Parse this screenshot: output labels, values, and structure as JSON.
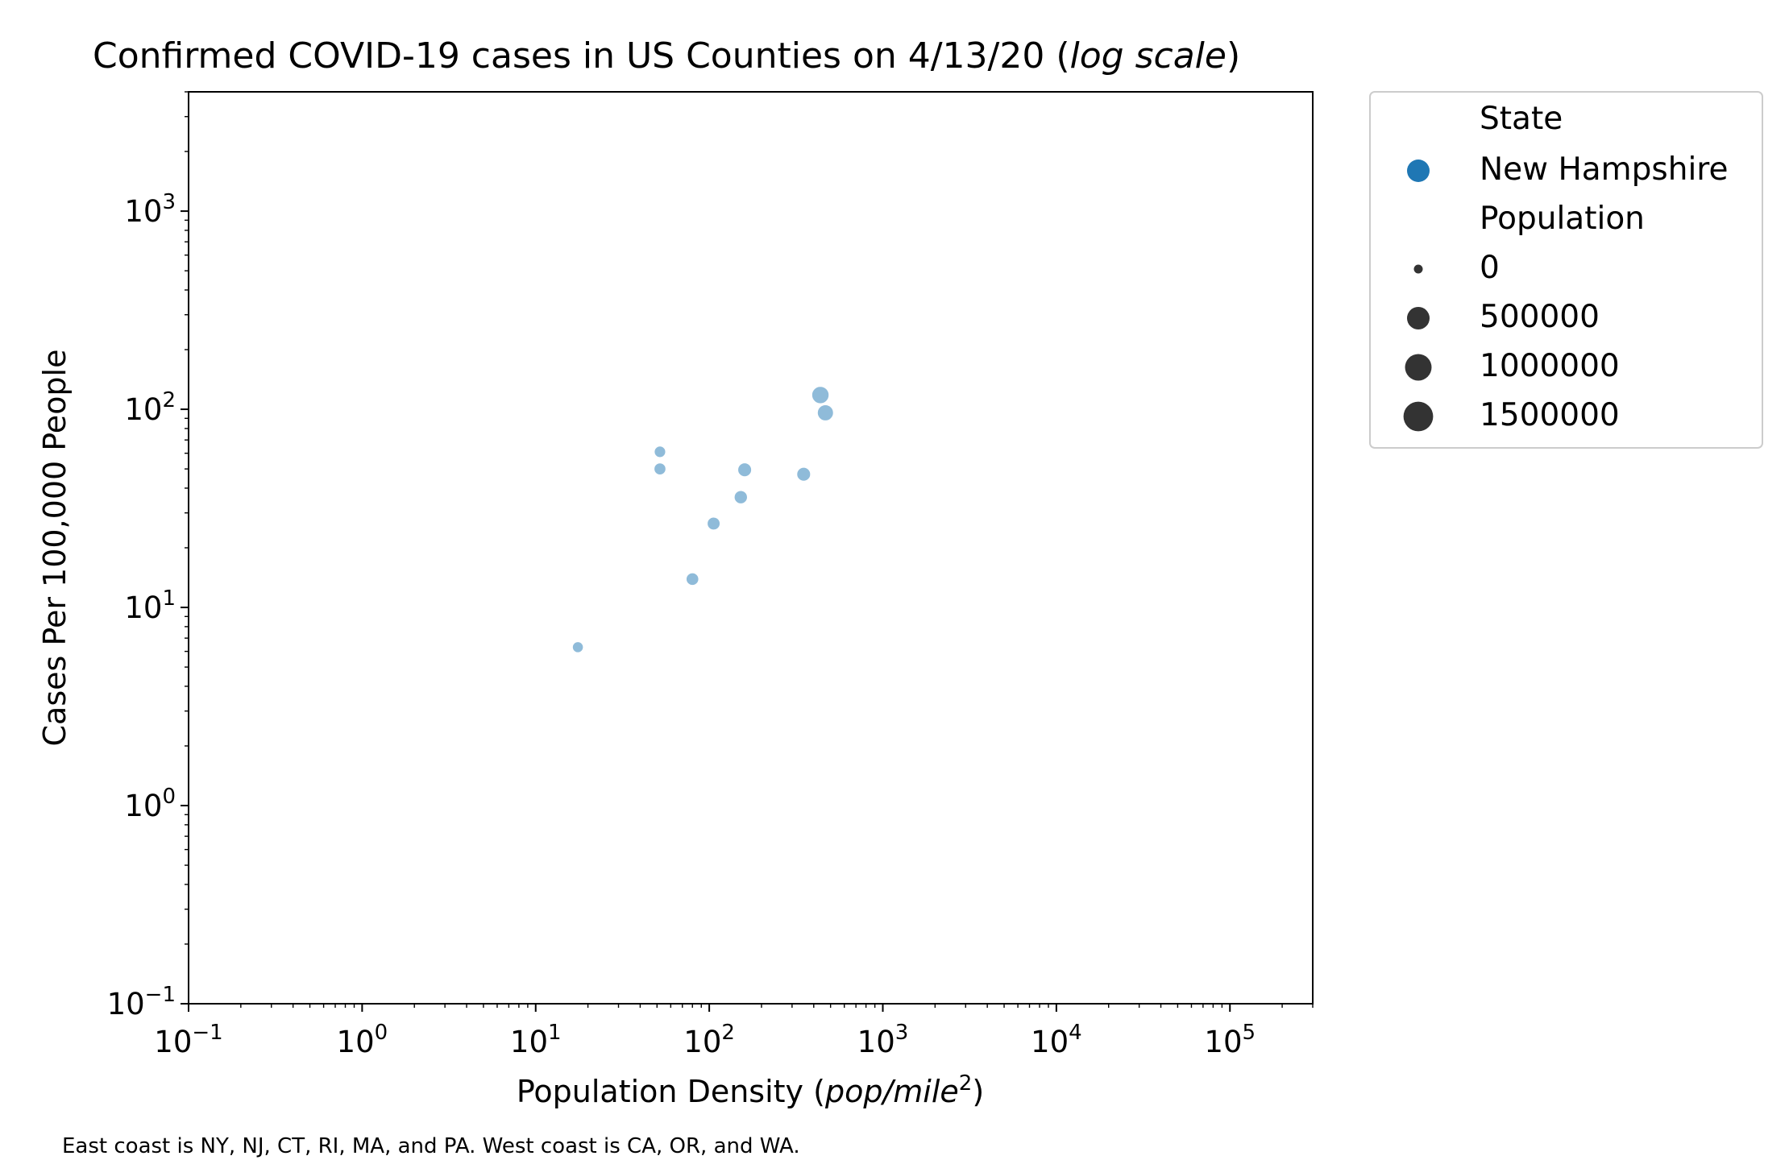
{
  "chart_data": {
    "type": "scatter",
    "title": "Confirmed COVID-19 cases in US Counties on 4/13/20 (log scale)",
    "title_main": "Confirmed COVID-19 cases in US Counties on 4/13/20 (",
    "title_italic": "log scale",
    "title_end": ")",
    "xlabel": "Population Density (pop/mile2)",
    "xlabel_main": "Population Density (",
    "xlabel_italic": "pop/mile",
    "xlabel_sup": "2",
    "xlabel_end": ")",
    "ylabel": "Cases Per 100,000 People",
    "x_scale": "log",
    "y_scale": "log",
    "xlim": [
      0.1,
      300000
    ],
    "ylim": [
      0.1,
      4000
    ],
    "grid": false,
    "legend_placement": "outside top-right",
    "x_ticks": [
      {
        "value": 0.1,
        "base": "10",
        "exp": "−1"
      },
      {
        "value": 1,
        "base": "10",
        "exp": "0"
      },
      {
        "value": 10,
        "base": "10",
        "exp": "1"
      },
      {
        "value": 100,
        "base": "10",
        "exp": "2"
      },
      {
        "value": 1000,
        "base": "10",
        "exp": "3"
      },
      {
        "value": 10000,
        "base": "10",
        "exp": "4"
      },
      {
        "value": 100000,
        "base": "10",
        "exp": "5"
      }
    ],
    "y_ticks": [
      {
        "value": 0.1,
        "base": "10",
        "exp": "−1"
      },
      {
        "value": 1,
        "base": "10",
        "exp": "0"
      },
      {
        "value": 10,
        "base": "10",
        "exp": "1"
      },
      {
        "value": 100,
        "base": "10",
        "exp": "2"
      },
      {
        "value": 1000,
        "base": "10",
        "exp": "3"
      }
    ],
    "series": [
      {
        "name": "New Hampshire",
        "color": "#1f77b4",
        "points": [
          {
            "x": 17.5,
            "y": 6.3,
            "population": 32000
          },
          {
            "x": 52,
            "y": 61,
            "population": 46000
          },
          {
            "x": 52,
            "y": 50,
            "population": 61000
          },
          {
            "x": 80,
            "y": 13.9,
            "population": 90000
          },
          {
            "x": 106,
            "y": 26.5,
            "population": 102000
          },
          {
            "x": 152,
            "y": 36,
            "population": 120000
          },
          {
            "x": 160,
            "y": 49.5,
            "population": 150000
          },
          {
            "x": 350,
            "y": 47,
            "population": 150000
          },
          {
            "x": 437,
            "y": 118,
            "population": 410000
          },
          {
            "x": 467,
            "y": 96,
            "population": 310000
          }
        ]
      }
    ],
    "legend": {
      "state_title": "State",
      "state_entries": [
        {
          "label": "New Hampshire",
          "color": "#1f77b4"
        }
      ],
      "population_title": "Population",
      "population_entries": [
        {
          "label": "0",
          "value": 0
        },
        {
          "label": "500000",
          "value": 500000
        },
        {
          "label": "1000000",
          "value": 1000000
        },
        {
          "label": "1500000",
          "value": 1500000
        }
      ],
      "size_color": "#333333"
    }
  },
  "footnote": "East coast is NY, NJ, CT, RI, MA, and PA. West coast is CA, OR, and WA."
}
